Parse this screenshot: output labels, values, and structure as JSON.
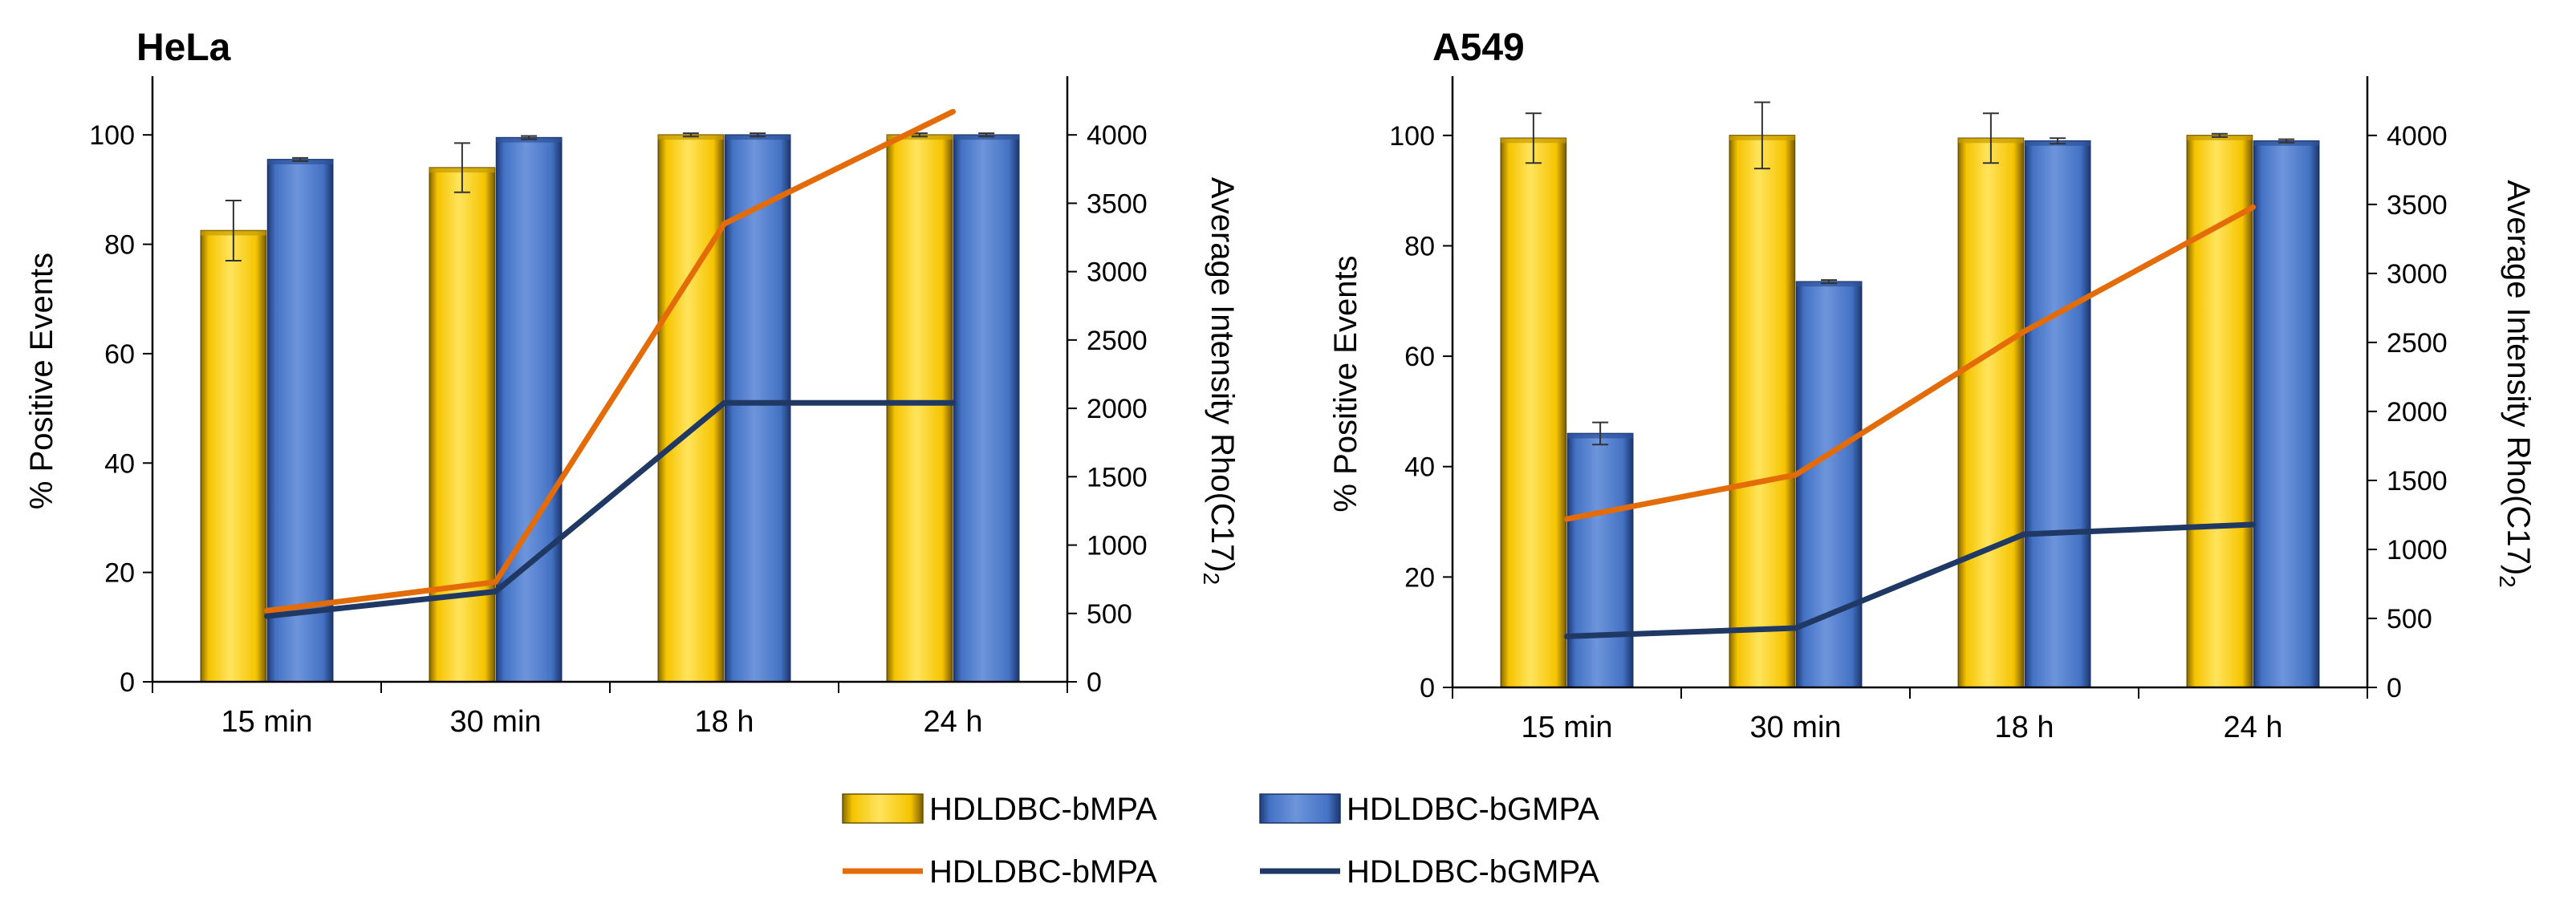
{
  "colors": {
    "bar_bmpa": "#F5C300",
    "bar_bgmpa": "#4472C4",
    "line_bmpa": "#E36C09",
    "line_bgmpa": "#1F3864"
  },
  "legend": [
    {
      "label": "HDLDBC-bMPA",
      "kind": "bar",
      "color_key": "bar_bmpa"
    },
    {
      "label": "HDLDBC-bGMPA",
      "kind": "bar",
      "color_key": "bar_bgmpa"
    },
    {
      "label": "HDLDBC-bMPA",
      "kind": "line",
      "color_key": "line_bmpa"
    },
    {
      "label": "HDLDBC-bGMPA",
      "kind": "line",
      "color_key": "line_bgmpa"
    }
  ],
  "chart_data": [
    {
      "type": "bar",
      "title": "HeLa",
      "categories": [
        "15 min",
        "30 min",
        "18 h",
        "24 h"
      ],
      "ylabel": "% Positive Events",
      "y2label": "Average Intensity Rho(C17)",
      "y2label_sub": "2",
      "ylim": [
        0,
        110
      ],
      "yticks": [
        0,
        20,
        40,
        60,
        80,
        100
      ],
      "y2lim": [
        0,
        4400
      ],
      "y2ticks": [
        0,
        500,
        1000,
        1500,
        2000,
        2500,
        3000,
        3500,
        4000
      ],
      "series": [
        {
          "name": "HDLDBC-bMPA",
          "kind": "bar",
          "axis": "left",
          "values": [
            82.5,
            94,
            100,
            100
          ],
          "errors": [
            5.5,
            4.5,
            0.3,
            0.3
          ]
        },
        {
          "name": "HDLDBC-bGMPA",
          "kind": "bar",
          "axis": "left",
          "values": [
            95.5,
            99.5,
            100,
            100
          ],
          "errors": [
            0.3,
            0.3,
            0.3,
            0.3
          ]
        },
        {
          "name": "HDLDBC-bMPA",
          "kind": "line",
          "axis": "right",
          "values": [
            520,
            730,
            3350,
            4170
          ]
        },
        {
          "name": "HDLDBC-bGMPA",
          "kind": "line",
          "axis": "right",
          "values": [
            480,
            660,
            2040,
            2040
          ]
        }
      ],
      "grid": false,
      "legend": "bottom"
    },
    {
      "type": "bar",
      "title": "A549",
      "categories": [
        "15 min",
        "30 min",
        "18 h",
        "24 h"
      ],
      "ylabel": "% Positive Events",
      "y2label": "Average Intensity Rho(C17)",
      "y2label_sub": "2",
      "ylim": [
        0,
        110
      ],
      "yticks": [
        0,
        20,
        40,
        60,
        80,
        100
      ],
      "y2lim": [
        0,
        4400
      ],
      "y2ticks": [
        0,
        500,
        1000,
        1500,
        2000,
        2500,
        3000,
        3500,
        4000
      ],
      "series": [
        {
          "name": "HDLDBC-bMPA",
          "kind": "bar",
          "axis": "left",
          "values": [
            99.5,
            100,
            99.5,
            100
          ],
          "errors": [
            4.5,
            6,
            4.5,
            0.3
          ]
        },
        {
          "name": "HDLDBC-bGMPA",
          "kind": "bar",
          "axis": "left",
          "values": [
            46,
            73.5,
            99,
            99
          ],
          "errors": [
            2,
            0.3,
            0.5,
            0.3
          ]
        },
        {
          "name": "HDLDBC-bMPA",
          "kind": "line",
          "axis": "right",
          "values": [
            1220,
            1540,
            2580,
            3480
          ]
        },
        {
          "name": "HDLDBC-bGMPA",
          "kind": "line",
          "axis": "right",
          "values": [
            370,
            430,
            1110,
            1180
          ]
        }
      ],
      "grid": false,
      "legend": "bottom"
    }
  ]
}
